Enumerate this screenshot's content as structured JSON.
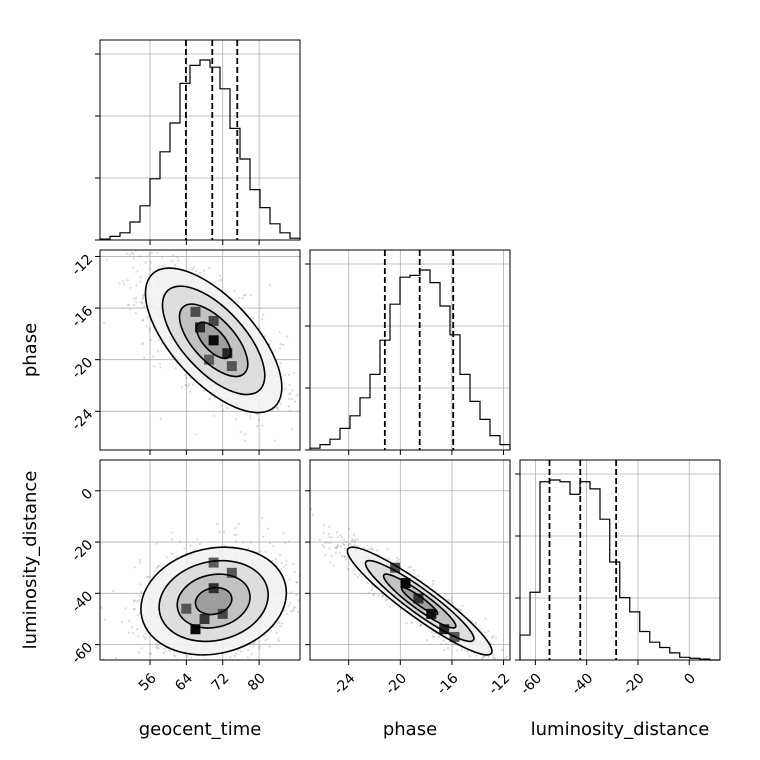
{
  "chart_data": {
    "type": "corner",
    "parameters": [
      "geocent_time",
      "phase",
      "luminosity_distance"
    ],
    "grid": true,
    "quantile_lines": "dashed",
    "histograms": [
      {
        "name": "geocent_time",
        "xlabel": "geocent_time",
        "xlim": [
          45,
          89
        ],
        "xticks": [
          56,
          64,
          72,
          80
        ],
        "bin_edges": [
          45,
          47.2,
          49.4,
          51.6,
          53.8,
          56,
          58.2,
          60.4,
          62.6,
          64.8,
          67,
          69.2,
          71.4,
          73.6,
          75.8,
          78,
          80.2,
          82.4,
          84.6,
          86.8,
          89
        ],
        "counts": [
          0.005,
          0.02,
          0.04,
          0.1,
          0.19,
          0.34,
          0.49,
          0.65,
          0.87,
          0.97,
          1.0,
          0.96,
          0.84,
          0.62,
          0.45,
          0.28,
          0.18,
          0.09,
          0.04,
          0.01
        ],
        "quantiles": [
          63.9,
          69.7,
          75.2
        ]
      },
      {
        "name": "phase",
        "xlim": [
          -27,
          -11.5
        ],
        "xticks": [
          -24,
          -20,
          -16,
          -12
        ],
        "bin_edges": [
          -27,
          -26.225,
          -25.45,
          -24.675,
          -23.9,
          -23.125,
          -22.35,
          -21.575,
          -20.8,
          -20.025,
          -19.25,
          -18.475,
          -17.7,
          -16.925,
          -16.15,
          -15.375,
          -14.6,
          -13.825,
          -13.05,
          -12.275,
          -11.5
        ],
        "counts": [
          0.01,
          0.03,
          0.06,
          0.12,
          0.19,
          0.29,
          0.42,
          0.61,
          0.81,
          0.96,
          0.97,
          1.0,
          0.93,
          0.8,
          0.64,
          0.42,
          0.27,
          0.17,
          0.08,
          0.03
        ],
        "quantiles": [
          -21.2,
          -18.5,
          -15.9
        ]
      },
      {
        "name": "luminosity_distance",
        "xlabel": "luminosity_distance",
        "xlim": [
          -66,
          12
        ],
        "xticks": [
          -60,
          -40,
          -20,
          0
        ],
        "bin_edges": [
          -66,
          -62.1,
          -58.2,
          -54.3,
          -50.4,
          -46.5,
          -42.6,
          -38.7,
          -34.8,
          -31.0,
          -27.1,
          -23.2,
          -19.3,
          -15.4,
          -11.5,
          -7.6,
          -3.7,
          0.2,
          4.1,
          8.0,
          12
        ],
        "counts": [
          0.14,
          0.38,
          1.0,
          1.01,
          1.0,
          0.93,
          1.0,
          0.96,
          0.79,
          0.55,
          0.35,
          0.27,
          0.16,
          0.1,
          0.07,
          0.04,
          0.015,
          0.01,
          0.005,
          0.0
        ],
        "quantiles": [
          -54.5,
          -42.5,
          -28.5
        ]
      }
    ],
    "pairs": [
      {
        "x": "geocent_time",
        "y": "phase",
        "ylabel": "phase",
        "xlim": [
          45,
          89
        ],
        "ylim": [
          -27,
          -11.5
        ],
        "yticks": [
          -24,
          -20,
          -16,
          -12
        ],
        "mean": [
          70,
          -18.5
        ],
        "sd": [
          7.5,
          2.8
        ],
        "rho": -0.65,
        "density_cells": [
          {
            "x": 70,
            "y": -18.5,
            "level": 1.0
          },
          {
            "x": 67,
            "y": -17.5,
            "level": 0.8
          },
          {
            "x": 73,
            "y": -19.5,
            "level": 0.8
          },
          {
            "x": 66,
            "y": -16.3,
            "level": 0.55
          },
          {
            "x": 74,
            "y": -20.5,
            "level": 0.5
          },
          {
            "x": 70,
            "y": -17.0,
            "level": 0.6
          },
          {
            "x": 69,
            "y": -20.0,
            "level": 0.45
          }
        ]
      },
      {
        "x": "geocent_time",
        "y": "luminosity_distance",
        "ylabel": "luminosity_distance",
        "xlim": [
          45,
          89
        ],
        "ylim": [
          -66,
          12
        ],
        "yticks": [
          -60,
          -40,
          -20,
          0
        ],
        "mean": [
          70,
          -43
        ],
        "sd": [
          8,
          10.5
        ],
        "rho": 0.15,
        "density_cells": [
          {
            "x": 66,
            "y": -54,
            "level": 1.0
          },
          {
            "x": 70,
            "y": -38,
            "level": 0.75
          },
          {
            "x": 68,
            "y": -50,
            "level": 0.7
          },
          {
            "x": 72,
            "y": -48,
            "level": 0.6
          },
          {
            "x": 64,
            "y": -46,
            "level": 0.5
          },
          {
            "x": 74,
            "y": -32,
            "level": 0.5
          },
          {
            "x": 70,
            "y": -28,
            "level": 0.45
          }
        ]
      },
      {
        "x": "phase",
        "y": "luminosity_distance",
        "xlim": [
          -27,
          -11.5
        ],
        "ylim": [
          -66,
          12
        ],
        "mean": [
          -18.5,
          -43
        ],
        "sd": [
          2.8,
          10.5
        ],
        "rho": -0.93,
        "density_cells": [
          {
            "x": -19.6,
            "y": -36,
            "level": 1.0
          },
          {
            "x": -17.6,
            "y": -48,
            "level": 0.95
          },
          {
            "x": -16.6,
            "y": -54,
            "level": 0.8
          },
          {
            "x": -18.6,
            "y": -42,
            "level": 0.75
          },
          {
            "x": -20.4,
            "y": -30,
            "level": 0.55
          },
          {
            "x": -15.8,
            "y": -57,
            "level": 0.5
          }
        ]
      }
    ]
  }
}
